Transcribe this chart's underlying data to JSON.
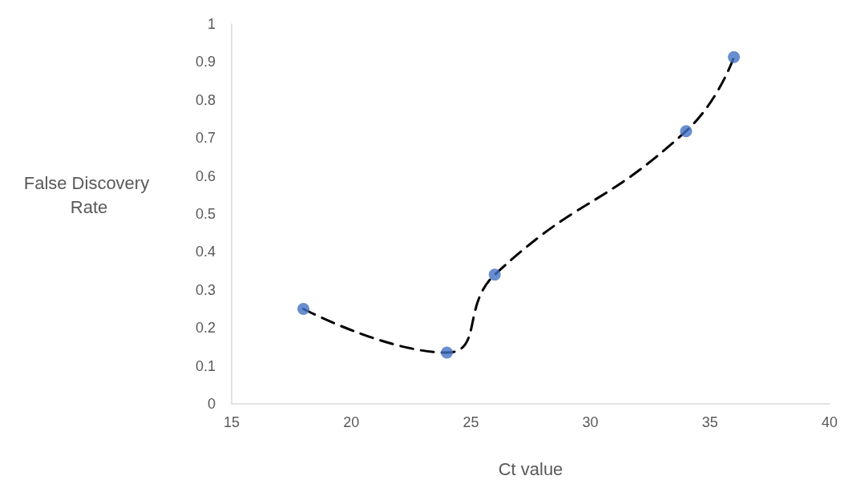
{
  "chart_data": {
    "type": "line",
    "xlabel": "Ct value",
    "ylabel": "False Discovery Rate",
    "series": [
      {
        "color": "#000000",
        "marker": "none",
        "x": [
          18,
          24,
          26,
          34,
          36
        ],
        "values": [
          0.25,
          0.135,
          0.34,
          0.718,
          0.913
        ]
      },
      {
        "type": "scatter",
        "color": "#4472c4",
        "marker": "circle",
        "x": [
          18,
          24,
          26,
          34,
          36
        ],
        "values": [
          0.25,
          0.135,
          0.34,
          0.718,
          0.913
        ]
      }
    ],
    "xlim": [
      15,
      40
    ],
    "xticks": [
      15,
      20,
      25,
      30,
      35,
      40
    ],
    "ylim": [
      0,
      1
    ],
    "yticks": [
      0,
      0.1,
      0.2,
      0.3,
      0.4,
      0.5,
      0.6,
      0.7,
      0.8,
      0.9,
      1
    ],
    "grid": false,
    "line_style": "dashed"
  }
}
